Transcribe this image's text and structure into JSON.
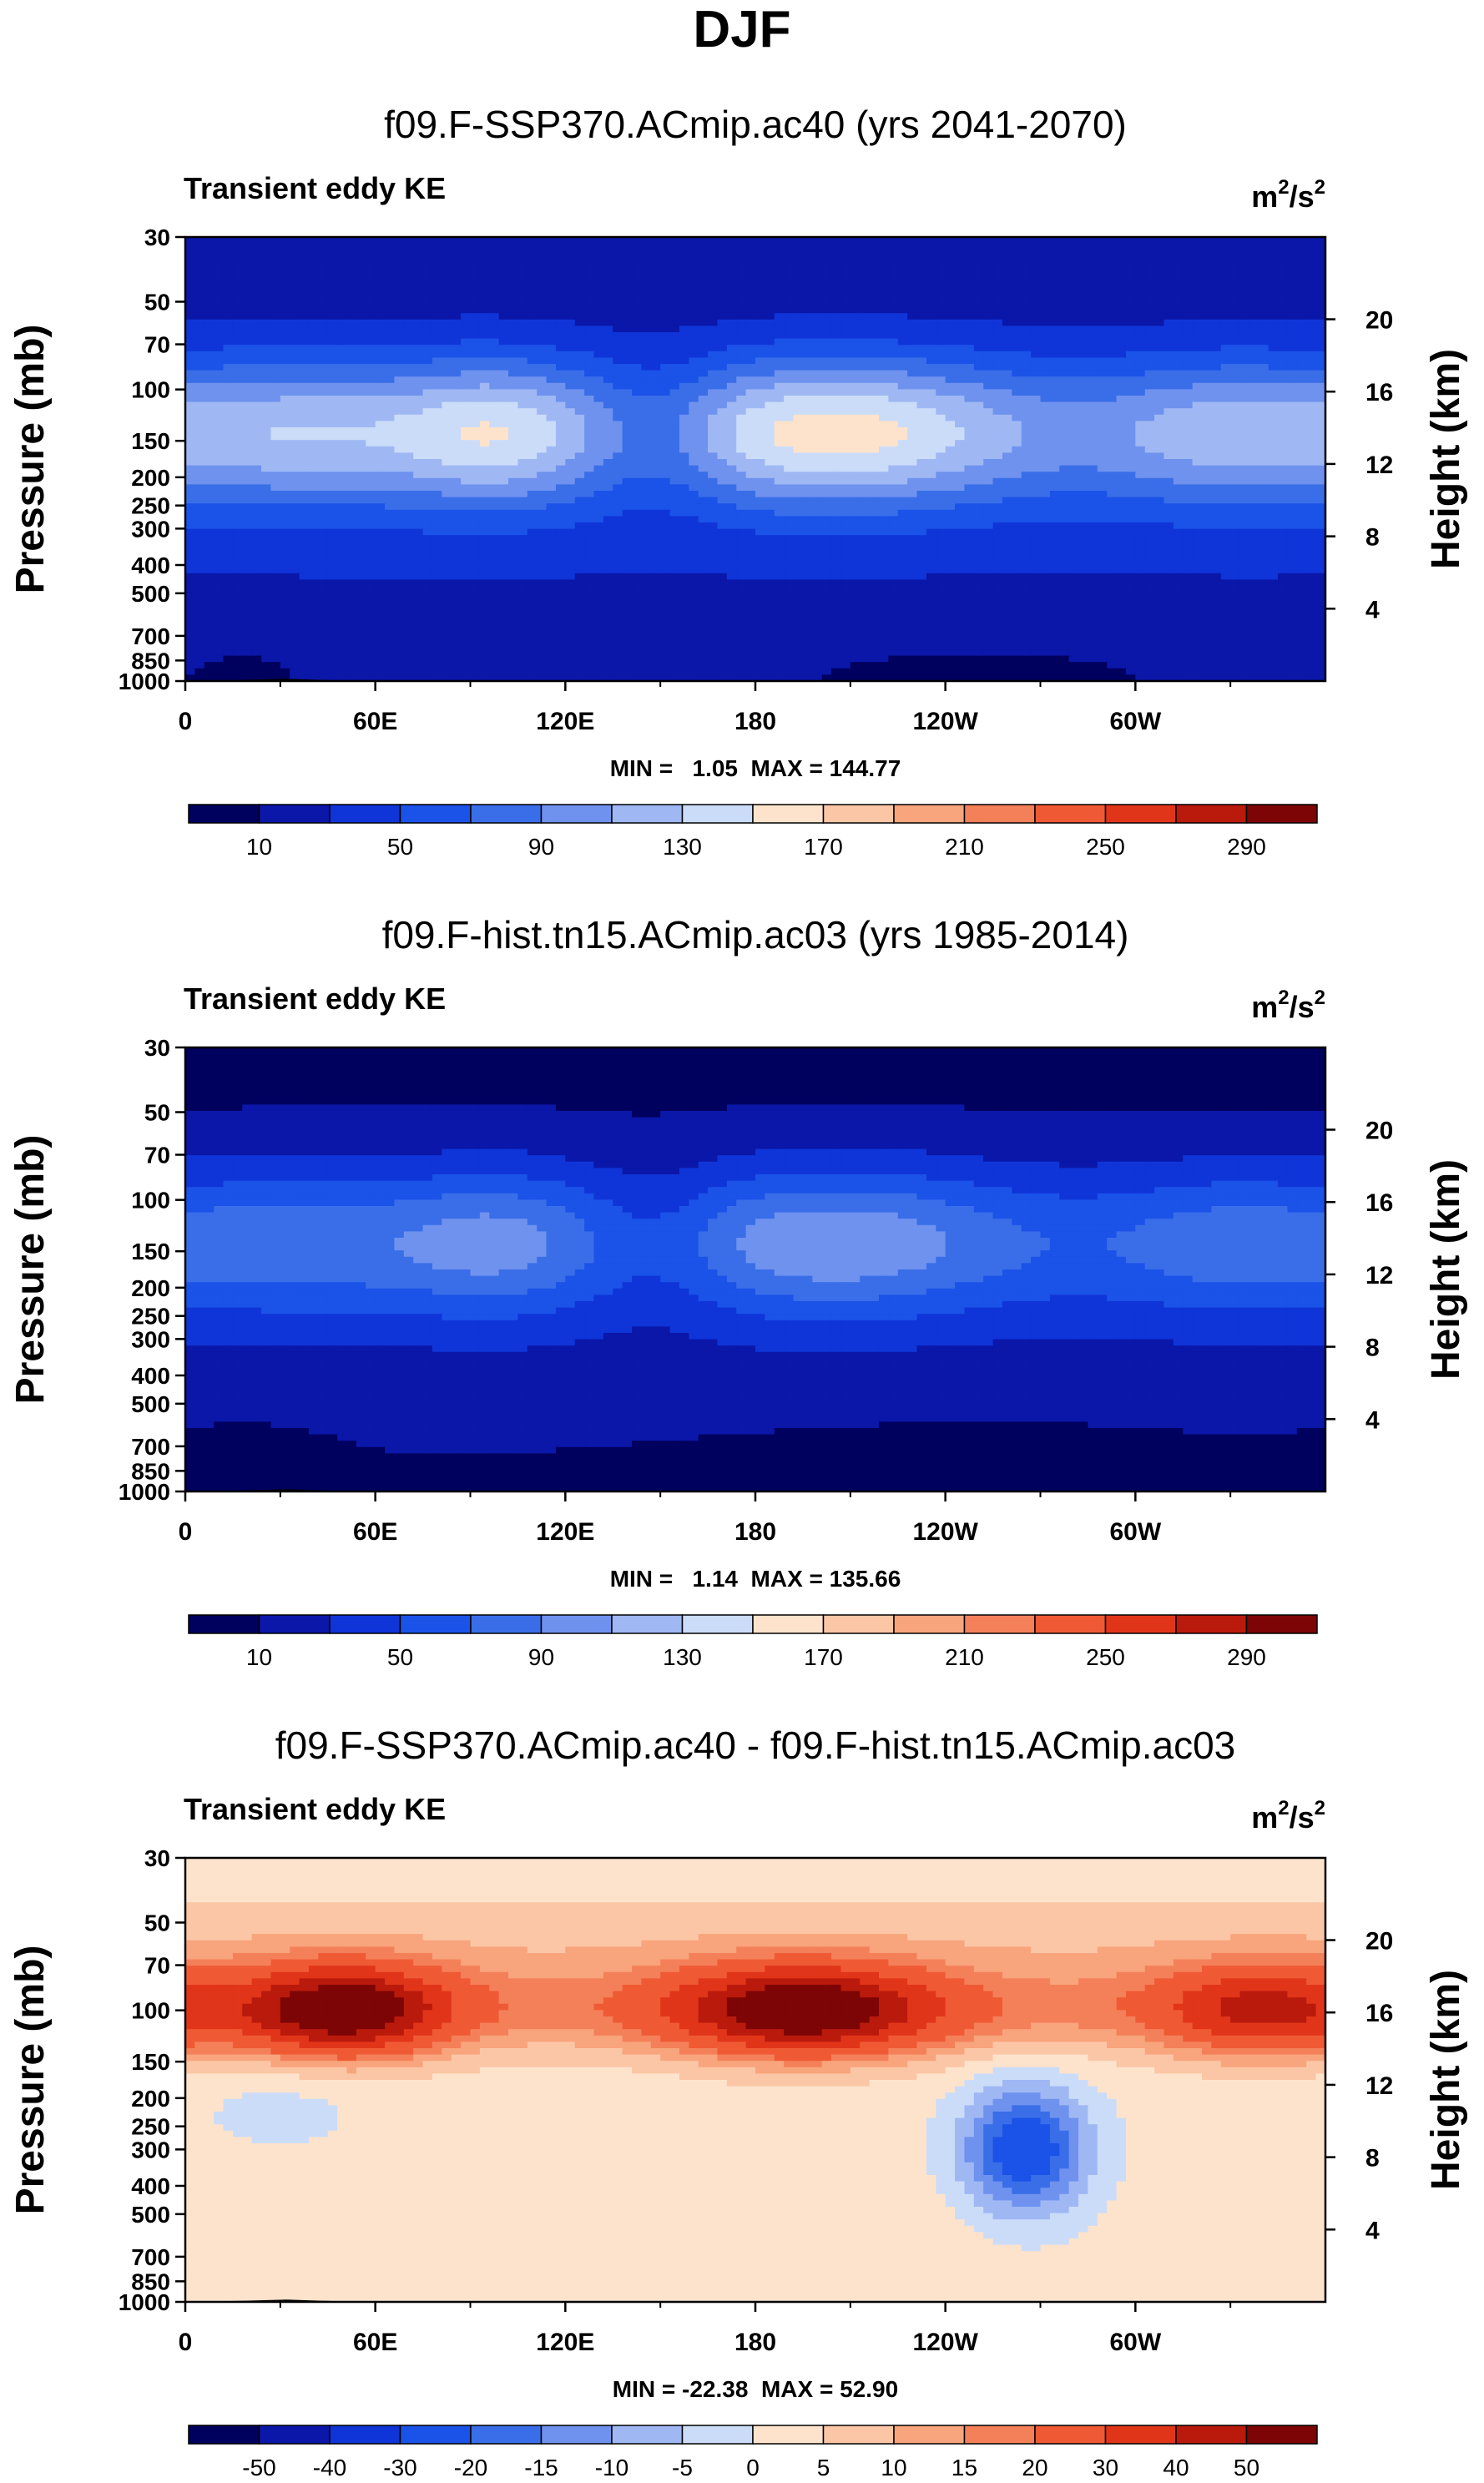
{
  "figure": {
    "season": "DJF",
    "colors": {
      "abs_palette": [
        "#00005e",
        "#0a17a8",
        "#0f35d8",
        "#1b52e8",
        "#3a6ee8",
        "#6f92ee",
        "#9fb8f4",
        "#cbdcf8",
        "#fde3cc",
        "#fbc6a6",
        "#f8a47c",
        "#f4805a",
        "#ef5a34",
        "#e1351a",
        "#ba1a0c",
        "#7d0505"
      ],
      "diff_palette": [
        "#00005e",
        "#0a17a8",
        "#0f35d8",
        "#1b52e8",
        "#3a6ee8",
        "#6f92ee",
        "#9fb8f4",
        "#cbdcf8",
        "#fde3cc",
        "#fbc6a6",
        "#f8a47c",
        "#f4805a",
        "#ef5a34",
        "#e1351a",
        "#ba1a0c",
        "#7d0505"
      ],
      "topography": "#000000"
    }
  },
  "chart_data": [
    {
      "type": "heatmap",
      "subtype": "filled-contour",
      "title": "f09.F-SSP370.ACmip.ac40 (yrs 2041-2070)",
      "left_string": "Transient eddy KE",
      "units": {
        "base": "m",
        "sup1": "2",
        "mid": "/s",
        "sup2": "2"
      },
      "ylabel": "Pressure (mb)",
      "ylabel_right": "Height (km)",
      "y_ticks": [
        "30",
        "50",
        "70",
        "100",
        "150",
        "200",
        "250",
        "300",
        "400",
        "500",
        "700",
        "850",
        "1000"
      ],
      "y_right_ticks": [
        "20",
        "16",
        "12",
        "8",
        "4"
      ],
      "x_ticks": [
        "0",
        "60E",
        "120E",
        "180",
        "120W",
        "60W"
      ],
      "xlim_deg": [
        0,
        360
      ],
      "stats": "MIN =   1.05  MAX = 144.77",
      "min": 1.05,
      "max": 144.77,
      "colorbar_labels": [
        "10",
        "50",
        "90",
        "130",
        "170",
        "210",
        "250",
        "290"
      ],
      "field_base": 22,
      "field_scale": 1.0,
      "field_hi_scale": 1.0,
      "field_lo_scale": 1.0,
      "field_lo_shift": 0
    },
    {
      "type": "heatmap",
      "subtype": "filled-contour",
      "title": "f09.F-hist.tn15.ACmip.ac03 (yrs 1985-2014)",
      "left_string": "Transient eddy KE",
      "units": {
        "base": "m",
        "sup1": "2",
        "mid": "/s",
        "sup2": "2"
      },
      "ylabel": "Pressure (mb)",
      "ylabel_right": "Height (km)",
      "y_ticks": [
        "30",
        "50",
        "70",
        "100",
        "150",
        "200",
        "250",
        "300",
        "400",
        "500",
        "700",
        "850",
        "1000"
      ],
      "y_right_ticks": [
        "20",
        "16",
        "12",
        "8",
        "4"
      ],
      "x_ticks": [
        "0",
        "60E",
        "120E",
        "180",
        "120W",
        "60W"
      ],
      "xlim_deg": [
        0,
        360
      ],
      "stats": "MIN =   1.14  MAX = 135.66",
      "min": 1.14,
      "max": 135.66,
      "colorbar_labels": [
        "10",
        "50",
        "90",
        "130",
        "170",
        "210",
        "250",
        "290"
      ],
      "field_base": 14,
      "field_scale": 0.86,
      "field_hi_scale": 0.8,
      "field_lo_scale": 1.0,
      "field_lo_shift": 10
    },
    {
      "type": "heatmap",
      "subtype": "filled-contour-difference",
      "title": "f09.F-SSP370.ACmip.ac40 - f09.F-hist.tn15.ACmip.ac03",
      "left_string": "Transient eddy KE",
      "units": {
        "base": "m",
        "sup1": "2",
        "mid": "/s",
        "sup2": "2"
      },
      "ylabel": "Pressure (mb)",
      "ylabel_right": "Height (km)",
      "y_ticks": [
        "30",
        "50",
        "70",
        "100",
        "150",
        "200",
        "250",
        "300",
        "400",
        "500",
        "700",
        "850",
        "1000"
      ],
      "y_right_ticks": [
        "20",
        "16",
        "12",
        "8",
        "4"
      ],
      "x_ticks": [
        "0",
        "60E",
        "120E",
        "180",
        "120W",
        "60W"
      ],
      "xlim_deg": [
        0,
        360
      ],
      "stats": "MIN = -22.38  MAX = 52.90",
      "min": -22.38,
      "max": 52.9,
      "colorbar_labels": [
        "-50",
        "-40",
        "-30",
        "-20",
        "-15",
        "-10",
        "-5",
        "0",
        "5",
        "10",
        "15",
        "20",
        "30",
        "40",
        "50"
      ],
      "diff_levels": [
        -50,
        -40,
        -30,
        -20,
        -15,
        -10,
        -5,
        0,
        5,
        10,
        15,
        20,
        30,
        40,
        50
      ]
    }
  ]
}
